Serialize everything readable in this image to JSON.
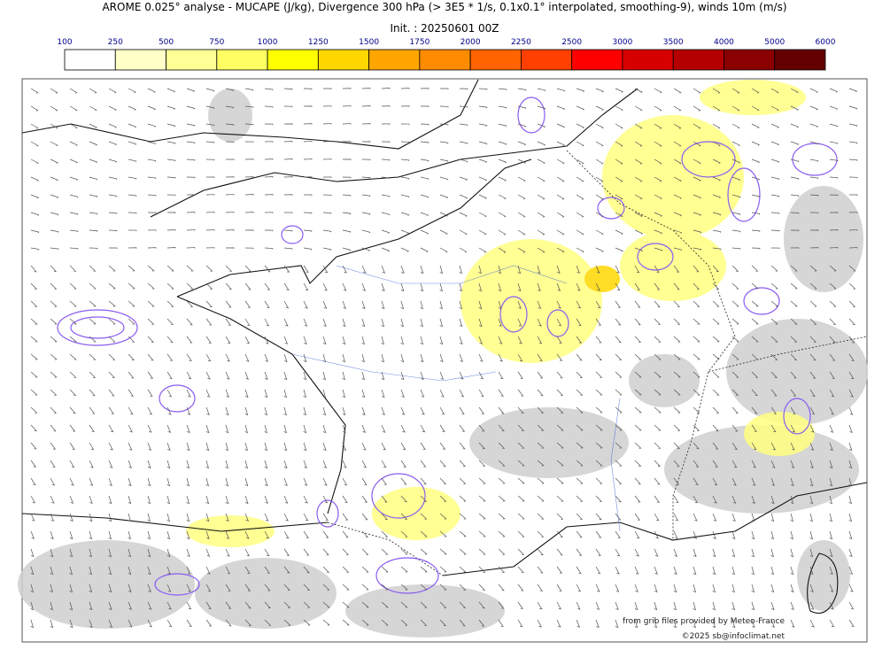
{
  "header": {
    "title": "AROME 0.025° analyse - MUCAPE (J/kg), Divergence 300 hPa (> 3E5 * 1/s, 0.1x0.1° interpolated, smoothing-9), winds 10m (m/s)",
    "init": "Init. : 20250601 00Z"
  },
  "colorbar": {
    "levels": [
      100,
      250,
      500,
      750,
      1000,
      1250,
      1500,
      1750,
      2000,
      2250,
      2500,
      3000,
      3500,
      4000,
      5000,
      6000
    ],
    "colors": [
      "#ffffff",
      "#ffffc8",
      "#ffff96",
      "#ffff64",
      "#ffff00",
      "#ffd700",
      "#ffa500",
      "#ff8c00",
      "#ff6400",
      "#ff4000",
      "#ff0000",
      "#d70000",
      "#b40000",
      "#8b0000",
      "#640000"
    ]
  },
  "credits": {
    "source": "from grib files provided by Meteo-France",
    "copyright": "©2025 sb@infoclimat.net"
  }
}
